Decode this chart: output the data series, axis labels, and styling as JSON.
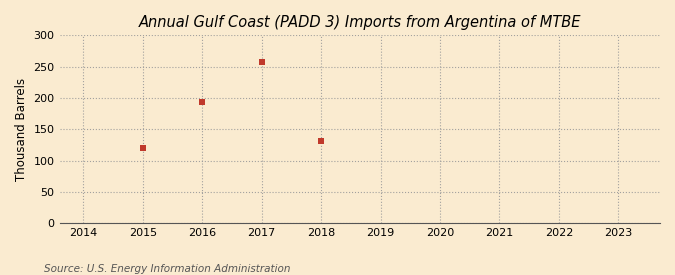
{
  "title": "Annual Gulf Coast (PADD 3) Imports from Argentina of MTBE",
  "ylabel": "Thousand Barrels",
  "source": "Source: U.S. Energy Information Administration",
  "x_values": [
    2015,
    2016,
    2017,
    2018
  ],
  "y_values": [
    120,
    193,
    258,
    131
  ],
  "xlim": [
    2013.6,
    2023.7
  ],
  "ylim": [
    0,
    300
  ],
  "yticks": [
    0,
    50,
    100,
    150,
    200,
    250,
    300
  ],
  "xticks": [
    2014,
    2015,
    2016,
    2017,
    2018,
    2019,
    2020,
    2021,
    2022,
    2023
  ],
  "marker_color": "#c0392b",
  "marker": "s",
  "marker_size": 4,
  "background_color": "#faebd0",
  "plot_bg_color": "#faebd0",
  "grid_color": "#999999",
  "title_fontsize": 10.5,
  "label_fontsize": 8.5,
  "tick_fontsize": 8,
  "source_fontsize": 7.5
}
